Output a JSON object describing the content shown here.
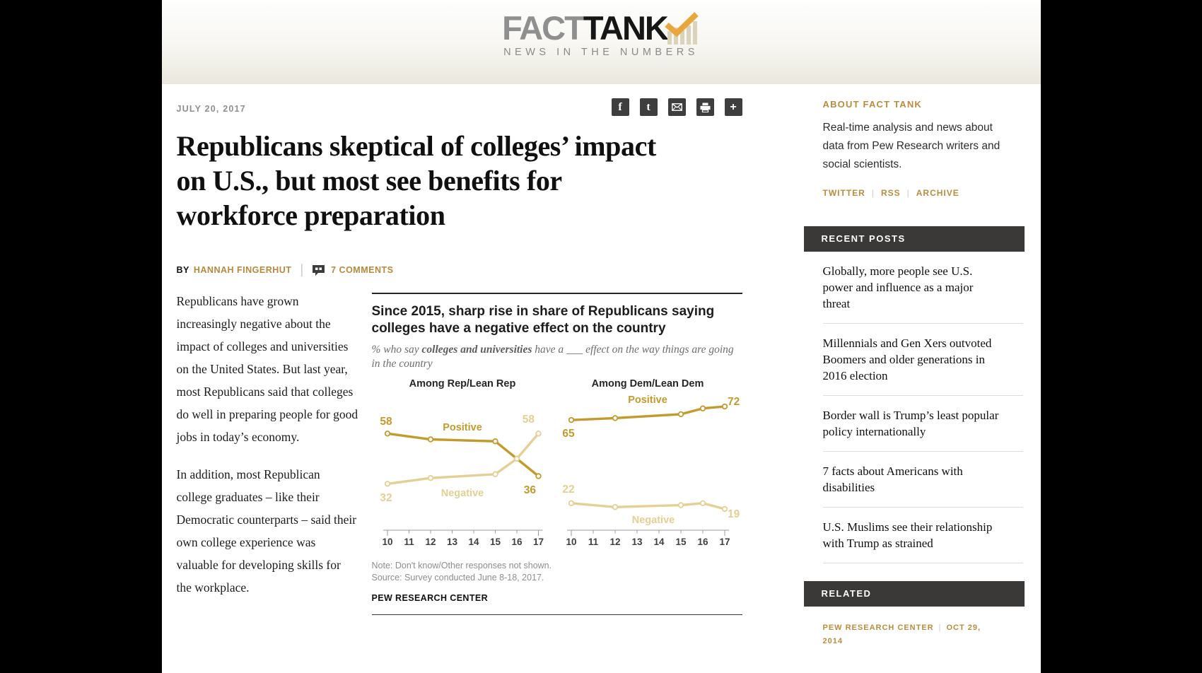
{
  "masthead": {
    "brand_fact": "FACT",
    "brand_tank": "TANK",
    "tagline": "NEWS IN THE NUMBERS"
  },
  "article": {
    "date": "JULY 20, 2017",
    "share": {
      "facebook_glyph": "f",
      "twitter_glyph": "t",
      "more_glyph": "+"
    },
    "title": "Republicans skeptical of colleges’ impact on U.S., but most see benefits for workforce preparation",
    "byline": {
      "by": "BY",
      "author": "HANNAH FINGERHUT",
      "comments": "7 COMMENTS"
    },
    "paragraphs": [
      "Republicans have grown increasingly negative about the impact of colleges and universities on the United States. But last year, most Republicans said that colleges do well in preparing people for good jobs in today’s economy.",
      "In addition, most Republican college graduates – like their Democratic counterparts – said their own college experience was valuable for developing skills for the workplace."
    ]
  },
  "chart_data": {
    "type": "line",
    "title": "Since 2015, sharp rise in share of Republicans saying colleges have a negative effect on the country",
    "subtitle_parts": [
      "% who say ",
      "colleges and universities",
      " have a ___ effect on the way things are going in the country"
    ],
    "x_survey_years": [
      2010,
      2012,
      2015,
      2016,
      2017
    ],
    "x_axis_ticks": [
      "10",
      "11",
      "12",
      "13",
      "14",
      "15",
      "16",
      "17"
    ],
    "x_range": [
      2010,
      2017
    ],
    "ylim": [
      15,
      80
    ],
    "grid": false,
    "legend_position": "inline-labels",
    "colors": {
      "dark": "#c49a2c",
      "light": "#e4cf94"
    },
    "panels": [
      {
        "header": "Among Rep/Lean Rep",
        "series": [
          {
            "name": "Positive",
            "shade": "dark",
            "values": [
              58,
              55,
              54,
              45,
              36
            ],
            "name_label": {
              "x": 128,
              "y": 74
            },
            "point_labels": [
              {
                "text": "58",
                "x": 20,
                "y": 66,
                "anchor": "middle"
              },
              {
                "text": "36",
                "x": 232,
                "y": 163,
                "anchor": "end"
              }
            ]
          },
          {
            "name": "Negative",
            "shade": "light",
            "values": [
              32,
              35,
              37,
              45,
              58
            ],
            "name_label": {
              "x": 128,
              "y": 167
            },
            "point_labels": [
              {
                "text": "32",
                "x": 20,
                "y": 174,
                "anchor": "middle"
              },
              {
                "text": "58",
                "x": 230,
                "y": 63,
                "anchor": "end"
              }
            ]
          }
        ]
      },
      {
        "header": "Among Dem/Lean Dem",
        "series": [
          {
            "name": "Positive",
            "shade": "dark",
            "values": [
              65,
              66,
              68,
              71,
              72
            ],
            "name_label": {
              "x": 390,
              "y": 35
            },
            "point_labels": [
              {
                "text": "65",
                "x": 278,
                "y": 83,
                "anchor": "middle"
              },
              {
                "text": "72",
                "x": 503,
                "y": 38,
                "anchor": "start"
              }
            ]
          },
          {
            "name": "Negative",
            "shade": "light",
            "values": [
              22,
              20,
              21,
              22,
              19
            ],
            "name_label": {
              "x": 398,
              "y": 205
            },
            "point_labels": [
              {
                "text": "22",
                "x": 278,
                "y": 162,
                "anchor": "middle"
              },
              {
                "text": "19",
                "x": 503,
                "y": 197,
                "anchor": "start"
              }
            ]
          }
        ]
      }
    ],
    "note": "Note: Don't know/Other responses not shown.",
    "source": "Source: Survey conducted June 8-18, 2017.",
    "credit": "PEW RESEARCH CENTER"
  },
  "sidebar": {
    "about": {
      "heading": "ABOUT FACT TANK",
      "body": "Real-time analysis and news about data from Pew Research writers and social scientists.",
      "links": [
        "TWITTER",
        "RSS",
        "ARCHIVE"
      ]
    },
    "recent": {
      "heading": "RECENT POSTS",
      "posts": [
        "Globally, more people see U.S. power and influence as a major threat",
        "Millennials and Gen Xers outvoted Boomers and older generations in 2016 election",
        "Border wall is Trump’s least popular policy internationally",
        "7 facts about Americans with disabilities",
        "U.S. Muslims see their relationship with Trump as strained"
      ]
    },
    "related": {
      "heading": "RELATED",
      "source": "PEW RESEARCH CENTER",
      "date": "OCT 29, 2014"
    }
  }
}
